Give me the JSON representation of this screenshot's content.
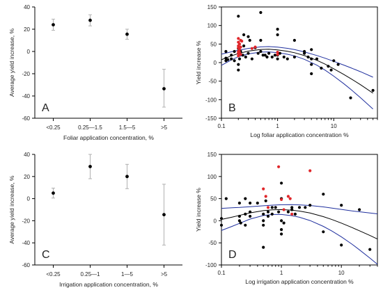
{
  "chart_data": [
    {
      "type": "scatter",
      "panel_label": "A",
      "xlabel": "Foliar application concentration, %",
      "ylabel": "Average yield increase, %",
      "ylim": [
        -60,
        40
      ],
      "yticks": [
        -60,
        -40,
        -20,
        0,
        20,
        40
      ],
      "categories": [
        "<0.25",
        "0.25—1.5",
        "1.5—5",
        ">5"
      ],
      "values": [
        24,
        28,
        15.5,
        -33.5
      ],
      "err_low": [
        19,
        23,
        11,
        -50
      ],
      "err_high": [
        29,
        33,
        20,
        -16
      ]
    },
    {
      "type": "scatter",
      "panel_label": "B",
      "xlabel": "Log foliar application concentration %",
      "ylabel": "Yield increase %",
      "xscale": "log",
      "xlim": [
        0.1,
        60
      ],
      "ylim": [
        -150,
        150
      ],
      "xticks": [
        0.1,
        1,
        10
      ],
      "xtick_labels": [
        "0.1",
        "1",
        "10"
      ],
      "yticks": [
        -150,
        -100,
        -50,
        0,
        50,
        100,
        150
      ],
      "series": [
        {
          "color": "#000000",
          "points": [
            [
              0.12,
              30
            ],
            [
              0.12,
              12
            ],
            [
              0.12,
              5
            ],
            [
              0.13,
              8
            ],
            [
              0.15,
              20
            ],
            [
              0.15,
              10
            ],
            [
              0.17,
              30
            ],
            [
              0.17,
              5
            ],
            [
              0.2,
              125
            ],
            [
              0.2,
              38
            ],
            [
              0.2,
              25
            ],
            [
              0.2,
              -5
            ],
            [
              0.2,
              -20
            ],
            [
              0.21,
              10
            ],
            [
              0.22,
              30
            ],
            [
              0.24,
              20
            ],
            [
              0.25,
              75
            ],
            [
              0.25,
              45
            ],
            [
              0.27,
              15
            ],
            [
              0.3,
              70
            ],
            [
              0.3,
              25
            ],
            [
              0.32,
              60
            ],
            [
              0.35,
              10
            ],
            [
              0.4,
              40
            ],
            [
              0.45,
              25
            ],
            [
              0.5,
              135
            ],
            [
              0.5,
              60
            ],
            [
              0.5,
              30
            ],
            [
              0.55,
              20
            ],
            [
              0.6,
              20
            ],
            [
              0.65,
              15
            ],
            [
              0.7,
              25
            ],
            [
              0.8,
              15
            ],
            [
              0.9,
              20
            ],
            [
              1.0,
              90
            ],
            [
              1.0,
              75
            ],
            [
              1.0,
              20
            ],
            [
              1.0,
              10
            ],
            [
              1.1,
              25
            ],
            [
              1.3,
              15
            ],
            [
              1.5,
              10
            ],
            [
              2.0,
              60
            ],
            [
              2.0,
              15
            ],
            [
              3.0,
              30
            ],
            [
              3.0,
              25
            ],
            [
              3.5,
              15
            ],
            [
              4.0,
              35
            ],
            [
              4.0,
              10
            ],
            [
              4.0,
              -5
            ],
            [
              4.0,
              -30
            ],
            [
              5.0,
              10
            ],
            [
              6.0,
              -15
            ],
            [
              8.0,
              -10
            ],
            [
              9.0,
              -20
            ],
            [
              10.0,
              5
            ],
            [
              12.0,
              -5
            ],
            [
              20.0,
              -95
            ],
            [
              50.0,
              -75
            ]
          ]
        },
        {
          "color": "#e0262a",
          "points": [
            [
              0.2,
              65
            ],
            [
              0.2,
              55
            ],
            [
              0.2,
              45
            ],
            [
              0.2,
              40
            ],
            [
              0.2,
              30
            ],
            [
              0.2,
              25
            ],
            [
              0.2,
              18
            ],
            [
              0.21,
              50
            ],
            [
              0.21,
              35
            ],
            [
              0.21,
              28
            ],
            [
              0.22,
              60
            ],
            [
              0.22,
              42
            ],
            [
              0.22,
              22
            ],
            [
              0.23,
              58
            ],
            [
              0.35,
              38
            ],
            [
              0.4,
              42
            ],
            [
              1.0,
              28
            ],
            [
              1.0,
              22
            ]
          ]
        }
      ],
      "fit_center": [
        [
          0.1,
          7.6
        ],
        [
          0.15,
          18.1
        ],
        [
          0.2,
          24.4
        ],
        [
          0.3,
          30.9
        ],
        [
          0.5,
          35.4
        ],
        [
          0.7,
          36.0
        ],
        [
          1.0,
          34.4
        ],
        [
          1.5,
          30.5
        ],
        [
          2.0,
          26.6
        ],
        [
          3.0,
          18.9
        ],
        [
          5.0,
          6.1
        ],
        [
          7.0,
          -4.2
        ],
        [
          10.0,
          -16.6
        ],
        [
          15.0,
          -31.6
        ],
        [
          20.0,
          -42.9
        ],
        [
          30.0,
          -59.6
        ],
        [
          50.0,
          -82.3
        ]
      ],
      "fit_upper": [
        [
          0.1,
          22.6
        ],
        [
          0.15,
          29.0
        ],
        [
          0.2,
          33.1
        ],
        [
          0.3,
          38.3
        ],
        [
          0.5,
          42.4
        ],
        [
          0.7,
          43.2
        ],
        [
          1.0,
          41.9
        ],
        [
          1.5,
          38.5
        ],
        [
          2.0,
          35.1
        ],
        [
          3.0,
          28.9
        ],
        [
          5.0,
          19.1
        ],
        [
          7.0,
          11.8
        ],
        [
          10.0,
          3.4
        ],
        [
          15.0,
          -6.6
        ],
        [
          20.0,
          -13.9
        ],
        [
          30.0,
          -24.6
        ],
        [
          50.0,
          -39.3
        ]
      ],
      "fit_lower": [
        [
          0.1,
          -7.4
        ],
        [
          0.15,
          7.2
        ],
        [
          0.2,
          15.7
        ],
        [
          0.3,
          23.5
        ],
        [
          0.5,
          28.4
        ],
        [
          0.7,
          28.8
        ],
        [
          1.0,
          26.9
        ],
        [
          1.5,
          22.5
        ],
        [
          2.0,
          18.1
        ],
        [
          3.0,
          8.9
        ],
        [
          5.0,
          -6.9
        ],
        [
          7.0,
          -20.2
        ],
        [
          10.0,
          -36.6
        ],
        [
          15.0,
          -56.6
        ],
        [
          20.0,
          -71.9
        ],
        [
          30.0,
          -94.6
        ],
        [
          50.0,
          -125.3
        ]
      ],
      "fit_colors": [
        "#000000",
        "#1f2f9e"
      ]
    },
    {
      "type": "scatter",
      "panel_label": "C",
      "xlabel": "Irrigation application concentration, %",
      "ylabel": "Average yield increase, %",
      "ylim": [
        -60,
        40
      ],
      "yticks": [
        -60,
        -40,
        -20,
        0,
        20,
        40
      ],
      "categories": [
        "<0.25",
        "0.25—1",
        "1—5",
        ">5"
      ],
      "values": [
        5,
        29,
        20,
        -14.5
      ],
      "err_low": [
        0.5,
        18,
        9,
        -42
      ],
      "err_high": [
        9.5,
        40,
        31,
        13
      ]
    },
    {
      "type": "scatter",
      "panel_label": "D",
      "xlabel": "Log irrigation application concentration %",
      "ylabel": "Yield increase %",
      "xscale": "log",
      "xlim": [
        0.1,
        40
      ],
      "ylim": [
        -100,
        150
      ],
      "xticks": [
        0.1,
        1,
        10
      ],
      "xtick_labels": [
        "0.1",
        "1",
        "10"
      ],
      "yticks": [
        -100,
        -50,
        0,
        50,
        100,
        150
      ],
      "series": [
        {
          "color": "#000000",
          "points": [
            [
              0.1,
              5
            ],
            [
              0.1,
              -10
            ],
            [
              0.12,
              50
            ],
            [
              0.2,
              40
            ],
            [
              0.2,
              10
            ],
            [
              0.2,
              0
            ],
            [
              0.21,
              -5
            ],
            [
              0.25,
              50
            ],
            [
              0.25,
              15
            ],
            [
              0.25,
              -10
            ],
            [
              0.3,
              40
            ],
            [
              0.3,
              20
            ],
            [
              0.3,
              10
            ],
            [
              0.4,
              40
            ],
            [
              0.5,
              15
            ],
            [
              0.5,
              0
            ],
            [
              0.5,
              -10
            ],
            [
              0.5,
              -60
            ],
            [
              0.55,
              45
            ],
            [
              0.6,
              20
            ],
            [
              0.6,
              10
            ],
            [
              0.7,
              30
            ],
            [
              0.7,
              15
            ],
            [
              0.8,
              30
            ],
            [
              0.9,
              20
            ],
            [
              1.0,
              85
            ],
            [
              1.0,
              50
            ],
            [
              1.0,
              0
            ],
            [
              1.0,
              -20
            ],
            [
              1.0,
              -30
            ],
            [
              1.1,
              -5
            ],
            [
              1.3,
              20
            ],
            [
              1.5,
              30
            ],
            [
              1.5,
              25
            ],
            [
              1.7,
              15
            ],
            [
              2.0,
              30
            ],
            [
              2.5,
              30
            ],
            [
              3.0,
              35
            ],
            [
              5.0,
              60
            ],
            [
              5.0,
              -25
            ],
            [
              10.0,
              35
            ],
            [
              10.0,
              -55
            ],
            [
              20.0,
              25
            ],
            [
              30.0,
              -65
            ]
          ]
        },
        {
          "color": "#e0262a",
          "points": [
            [
              0.5,
              72
            ],
            [
              0.55,
              55
            ],
            [
              0.6,
              30
            ],
            [
              0.9,
              122
            ],
            [
              1.0,
              48
            ],
            [
              1.1,
              25
            ],
            [
              1.3,
              55
            ],
            [
              1.4,
              50
            ],
            [
              1.5,
              15
            ],
            [
              3.0,
              113
            ]
          ]
        }
      ],
      "fit_center": [
        [
          0.1,
          3.0
        ],
        [
          0.15,
          8.2
        ],
        [
          0.2,
          12.1
        ],
        [
          0.3,
          17.7
        ],
        [
          0.5,
          22.8
        ],
        [
          0.7,
          24.7
        ],
        [
          1.0,
          25.2
        ],
        [
          1.5,
          23.9
        ],
        [
          2.0,
          21.8
        ],
        [
          3.0,
          17.4
        ],
        [
          5.0,
          9.3
        ],
        [
          7.0,
          2.6
        ],
        [
          10.0,
          -5.4
        ],
        [
          15.0,
          -15.3
        ],
        [
          20.0,
          -22.7
        ],
        [
          30.0,
          -33.4
        ],
        [
          40.0,
          -41.4
        ]
      ],
      "fit_upper": [
        [
          0.1,
          28.0
        ],
        [
          0.15,
          29.2
        ],
        [
          0.2,
          30.1
        ],
        [
          0.3,
          31.7
        ],
        [
          0.5,
          33.8
        ],
        [
          0.7,
          35.2
        ],
        [
          1.0,
          36.2
        ],
        [
          1.5,
          36.4
        ],
        [
          2.0,
          35.8
        ],
        [
          3.0,
          34.4
        ],
        [
          5.0,
          31.3
        ],
        [
          7.0,
          28.6
        ],
        [
          10.0,
          25.6
        ],
        [
          15.0,
          22.2
        ],
        [
          20.0,
          20.3
        ],
        [
          30.0,
          17.6
        ],
        [
          40.0,
          15.6
        ]
      ],
      "fit_lower": [
        [
          0.1,
          -22.0
        ],
        [
          0.15,
          -12.8
        ],
        [
          0.2,
          -5.9
        ],
        [
          0.3,
          3.7
        ],
        [
          0.5,
          11.8
        ],
        [
          0.7,
          14.2
        ],
        [
          1.0,
          14.2
        ],
        [
          1.5,
          11.4
        ],
        [
          2.0,
          7.8
        ],
        [
          3.0,
          0.4
        ],
        [
          5.0,
          -12.7
        ],
        [
          7.0,
          -23.4
        ],
        [
          10.0,
          -36.4
        ],
        [
          15.0,
          -52.8
        ],
        [
          20.0,
          -65.7
        ],
        [
          30.0,
          -84.4
        ],
        [
          40.0,
          -98.4
        ]
      ],
      "fit_colors": [
        "#000000",
        "#1f2f9e"
      ]
    }
  ]
}
